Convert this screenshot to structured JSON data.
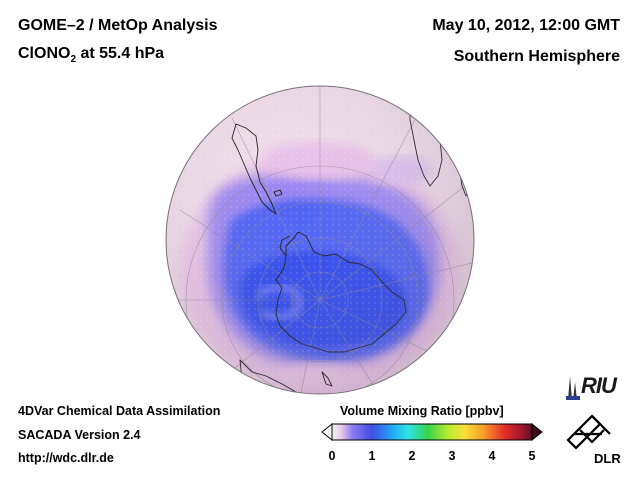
{
  "header": {
    "title_line1": "GOME–2 / MetOp Analysis",
    "title_species": "ClONO",
    "title_subscript": "2",
    "title_level": " at 55.4 hPa",
    "date": "May 10, 2012, 12:00 GMT",
    "hemisphere": "Southern Hemisphere"
  },
  "footer": {
    "line1": "4DVar Chemical Data Assimilation",
    "line2": "SACADA Version 2.4",
    "line3": "http://wdc.dlr.de"
  },
  "colorbar": {
    "title": "Volume Mixing Ratio [ppbv]",
    "ticks": [
      "0",
      "1",
      "2",
      "3",
      "4",
      "5"
    ],
    "colors": [
      "#f6f2f6",
      "#e7c3e9",
      "#8c7df0",
      "#3f4de8",
      "#23a7f2",
      "#2ee4ea",
      "#38d14c",
      "#b8ea2e",
      "#f7e03a",
      "#f79a2a",
      "#e2302a",
      "#a8182a",
      "#5a0f25"
    ]
  },
  "logos": {
    "riu": "RIU",
    "dlr": "DLR"
  },
  "map": {
    "projection": "orthographic",
    "pole": "South Pole",
    "colors": {
      "background_high": "#f1e3ee",
      "pink": "#e6bce4",
      "violet": "#a58ef2",
      "blue": "#5a6cf5",
      "deep_blue": "#2f4bf0"
    }
  }
}
